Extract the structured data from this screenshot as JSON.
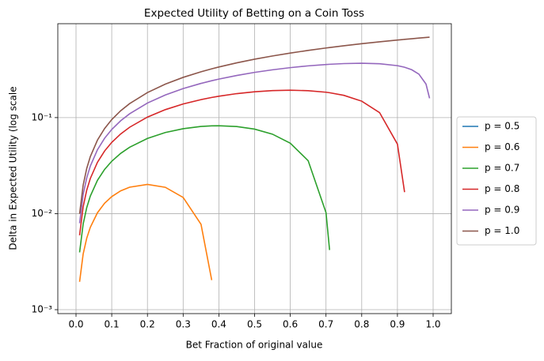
{
  "chart_data": {
    "type": "line",
    "title": "Expected Utility of Betting on a Coin Toss",
    "xlabel": "Bet Fraction of original value",
    "ylabel": "Delta in Expected Utility (log scale",
    "log_y": true,
    "grid": true,
    "legend": "outside-right",
    "x": [
      0.01,
      0.02,
      0.03,
      0.04,
      0.06,
      0.08,
      0.1,
      0.125,
      0.15,
      0.2,
      0.25,
      0.3,
      0.35,
      0.38,
      0.4,
      0.45,
      0.5,
      0.55,
      0.6,
      0.65,
      0.7,
      0.71,
      0.75,
      0.8,
      0.85,
      0.9,
      0.92,
      0.94,
      0.96,
      0.98,
      0.99
    ],
    "series": [
      {
        "name": "p = 0.5",
        "color": "#1f77b4",
        "values": [
          null,
          null,
          null,
          null,
          null,
          null,
          null,
          null,
          null,
          null,
          null,
          null,
          null,
          null,
          null,
          null,
          null,
          null,
          null,
          null,
          null,
          null,
          null,
          null,
          null,
          null,
          null,
          null,
          null,
          null,
          null
        ]
      },
      {
        "name": "p = 0.6",
        "color": "#ff7f0e",
        "values": [
          0.00195,
          0.0038,
          0.00555,
          0.0072,
          0.01021,
          0.01282,
          0.01504,
          0.01726,
          0.01885,
          0.02014,
          0.01881,
          0.01475,
          0.00775,
          0.00203,
          null,
          null,
          null,
          null,
          null,
          null,
          null,
          null,
          null,
          null,
          null,
          null,
          null,
          null,
          null,
          null,
          null
        ]
      },
      {
        "name": "p = 0.7",
        "color": "#2ca02c",
        "values": [
          0.00395,
          0.0078,
          0.01155,
          0.01521,
          0.02223,
          0.02886,
          0.03511,
          0.04239,
          0.04908,
          0.06068,
          0.06989,
          0.07665,
          0.08084,
          0.08204,
          0.08228,
          0.08074,
          0.07588,
          0.06722,
          0.05411,
          0.0356,
          0.01025,
          0.00418,
          null,
          null,
          null,
          null,
          null,
          null,
          null,
          null,
          null
        ]
      },
      {
        "name": "p = 0.8",
        "color": "#d62728",
        "values": [
          0.00595,
          0.0118,
          0.01756,
          0.02321,
          0.03424,
          0.04489,
          0.05518,
          0.06752,
          0.0793,
          0.10123,
          0.12098,
          0.13855,
          0.15392,
          0.16206,
          0.16701,
          0.17768,
          0.18575,
          0.1909,
          0.19274,
          0.19066,
          0.18371,
          0.18162,
          0.17044,
          0.14834,
          0.11273,
          0.05296,
          0.01672,
          null,
          null,
          null,
          null
        ]
      },
      {
        "name": "p = 0.9",
        "color": "#9467bd",
        "values": [
          0.00795,
          0.0158,
          0.02356,
          0.03122,
          0.04626,
          0.06093,
          0.07524,
          0.09265,
          0.10953,
          0.14177,
          0.17206,
          0.20046,
          0.22701,
          0.24207,
          0.25174,
          0.27462,
          0.29561,
          0.31457,
          0.33137,
          0.34572,
          0.35717,
          0.35905,
          0.36503,
          0.36807,
          0.36396,
          0.34741,
          0.33452,
          0.31508,
          0.28376,
          0.22359,
          0.1588
        ]
      },
      {
        "name": "p = 1.0",
        "color": "#8c564b",
        "values": [
          0.00995,
          0.0198,
          0.02956,
          0.03922,
          0.05827,
          0.07696,
          0.09531,
          0.11778,
          0.13976,
          0.18232,
          0.22314,
          0.26236,
          0.3001,
          0.32208,
          0.33647,
          0.37156,
          0.40547,
          0.43825,
          0.47,
          0.50078,
          0.53063,
          0.53649,
          0.55962,
          0.58779,
          0.61519,
          0.64185,
          0.65233,
          0.66269,
          0.67294,
          0.6831,
          0.68813
        ]
      }
    ],
    "xlim": [
      -0.051,
      1.051
    ],
    "xticks": [
      {
        "value": 0,
        "label": "0.0"
      },
      {
        "value": 0.1,
        "label": "0.1"
      },
      {
        "value": 0.2,
        "label": "0.2"
      },
      {
        "value": 0.3,
        "label": "0.3"
      },
      {
        "value": 0.4,
        "label": "0.4"
      },
      {
        "value": 0.5,
        "label": "0.5"
      },
      {
        "value": 0.6,
        "label": "0.6"
      },
      {
        "value": 0.7,
        "label": "0.7"
      },
      {
        "value": 0.8,
        "label": "0.8"
      },
      {
        "value": 0.9,
        "label": "0.9"
      },
      {
        "value": 1,
        "label": "1.0"
      }
    ],
    "ylim": [
      0.00091,
      0.95
    ],
    "yticks": [
      {
        "value": 0.001,
        "label": "10⁻³"
      },
      {
        "value": 0.01,
        "label": "10⁻²"
      },
      {
        "value": 0.1,
        "label": "10⁻¹"
      }
    ]
  }
}
